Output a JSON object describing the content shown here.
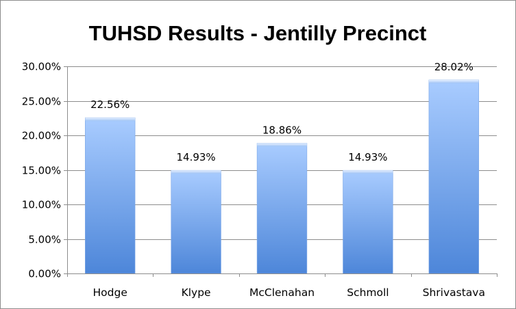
{
  "chart_data": {
    "type": "bar",
    "title": "TUHSD Results - Jentilly Precinct",
    "xlabel": "",
    "ylabel": "",
    "categories": [
      "Hodge",
      "Klype",
      "McClenahan",
      "Schmoll",
      "Shrivastava"
    ],
    "values": [
      22.56,
      14.93,
      18.86,
      14.93,
      28.02
    ],
    "data_labels": [
      "22.56%",
      "14.93%",
      "18.86%",
      "14.93%",
      "28.02%"
    ],
    "ylim": [
      0,
      30
    ],
    "yticks": [
      0,
      5,
      10,
      15,
      20,
      25,
      30
    ],
    "ytick_labels": [
      "0.00%",
      "5.00%",
      "10.00%",
      "15.00%",
      "20.00%",
      "25.00%",
      "30.00%"
    ],
    "grid": true,
    "legend": "none",
    "bar_color_light": "#a9ccff",
    "bar_color_dark": "#4d86d9"
  }
}
